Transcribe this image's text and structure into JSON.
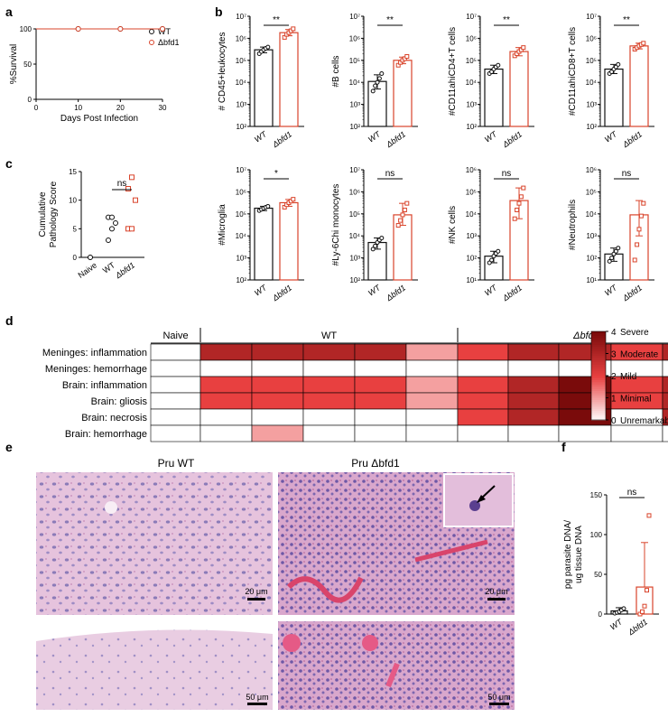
{
  "panel_labels": {
    "a": "a",
    "b": "b",
    "c": "c",
    "d": "d",
    "e": "e",
    "f": "f"
  },
  "colors": {
    "wt": "#111111",
    "mutant": "#d9442b",
    "heat_low": "#ffffff",
    "heat_high": "#7a0b0b"
  },
  "micrographs": {
    "top_left_title": "Pru WT",
    "top_right_title": "Pru Δbfd1",
    "scale_small": "20 μm",
    "scale_large": "50 μm"
  },
  "chart_data": [
    {
      "id": "a",
      "type": "line",
      "xlabel": "Days Post Infection",
      "ylabel": "%Survival",
      "xlim": [
        0,
        30
      ],
      "ylim": [
        0,
        100
      ],
      "xticks": [
        "0",
        "10",
        "20",
        "30"
      ],
      "yticks": [
        "0",
        "50",
        "100"
      ],
      "legend": "top-right",
      "series": [
        {
          "name": "WT",
          "x": [
            0,
            10,
            20,
            30
          ],
          "y": [
            100,
            100,
            100,
            100
          ]
        },
        {
          "name": "Δbfd1",
          "x": [
            0,
            10,
            20,
            30
          ],
          "y": [
            100,
            100,
            100,
            100
          ]
        }
      ]
    },
    {
      "id": "b1",
      "type": "scatter",
      "ylabel": "# CD45+leukocytes",
      "scale": "log",
      "ylim": [
        100,
        10000000
      ],
      "yticks": [
        "10²",
        "10³",
        "10⁴",
        "10⁵",
        "10⁶",
        "10⁷"
      ],
      "categories": [
        "WT",
        "Δbfd1"
      ],
      "means": [
        300000,
        1800000
      ],
      "errors": [
        [
          220000,
          400000
        ],
        [
          1300000,
          2500000
        ]
      ],
      "points": [
        [
          200000,
          250000,
          300000,
          350000,
          400000
        ],
        [
          1100000,
          1500000,
          1800000,
          2200000,
          2700000
        ]
      ],
      "significance": "**"
    },
    {
      "id": "b2",
      "type": "scatter",
      "ylabel": "#B cells",
      "scale": "log",
      "ylim": [
        100,
        10000000
      ],
      "yticks": [
        "10²",
        "10³",
        "10⁴",
        "10⁵",
        "10⁶",
        "10⁷"
      ],
      "categories": [
        "WT",
        "Δbfd1"
      ],
      "means": [
        11000,
        100000
      ],
      "errors": [
        [
          5000,
          22000
        ],
        [
          70000,
          140000
        ]
      ],
      "points": [
        [
          4000,
          7000,
          10000,
          15000,
          25000
        ],
        [
          60000,
          80000,
          100000,
          120000,
          150000
        ]
      ],
      "significance": "**"
    },
    {
      "id": "b3",
      "type": "scatter",
      "ylabel": "#CD11ahiCD4+T cells",
      "scale": "log",
      "ylim": [
        100,
        10000000
      ],
      "yticks": [
        "10²",
        "10³",
        "10⁴",
        "10⁵",
        "10⁶",
        "10⁷"
      ],
      "categories": [
        "WT",
        "Δbfd1"
      ],
      "means": [
        40000,
        250000
      ],
      "errors": [
        [
          25000,
          60000
        ],
        [
          160000,
          380000
        ]
      ],
      "points": [
        [
          25000,
          30000,
          40000,
          50000,
          60000
        ],
        [
          160000,
          200000,
          250000,
          300000,
          380000
        ]
      ],
      "significance": "**"
    },
    {
      "id": "b4",
      "type": "scatter",
      "ylabel": "#CD11ahiCD8+T cells",
      "scale": "log",
      "ylim": [
        100,
        10000000
      ],
      "yticks": [
        "10²",
        "10³",
        "10⁴",
        "10⁵",
        "10⁶",
        "10⁷"
      ],
      "categories": [
        "WT",
        "Δbfd1"
      ],
      "means": [
        40000,
        450000
      ],
      "errors": [
        [
          25000,
          65000
        ],
        [
          330000,
          600000
        ]
      ],
      "points": [
        [
          25000,
          30000,
          40000,
          50000,
          65000
        ],
        [
          320000,
          380000,
          450000,
          520000,
          600000
        ]
      ],
      "significance": "**"
    },
    {
      "id": "b5",
      "type": "scatter",
      "ylabel": "#Microglia",
      "scale": "log",
      "ylim": [
        100,
        10000000
      ],
      "yticks": [
        "10²",
        "10³",
        "10⁴",
        "10⁵",
        "10⁶",
        "10⁷"
      ],
      "categories": [
        "WT",
        "Δbfd1"
      ],
      "means": [
        180000,
        320000
      ],
      "errors": [
        [
          140000,
          220000
        ],
        [
          220000,
          450000
        ]
      ],
      "points": [
        [
          140000,
          160000,
          180000,
          200000,
          220000
        ],
        [
          200000,
          260000,
          320000,
          380000,
          460000
        ]
      ],
      "significance": "*"
    },
    {
      "id": "b6",
      "type": "scatter",
      "ylabel": "#Ly-6Chi monocytes",
      "scale": "log",
      "ylim": [
        100,
        10000000
      ],
      "yticks": [
        "10²",
        "10³",
        "10⁴",
        "10⁵",
        "10⁶",
        "10⁷"
      ],
      "categories": [
        "WT",
        "Δbfd1"
      ],
      "means": [
        5000,
        90000
      ],
      "errors": [
        [
          2500,
          8000
        ],
        [
          30000,
          300000
        ]
      ],
      "points": [
        [
          2500,
          3500,
          5000,
          6500,
          8000
        ],
        [
          30000,
          50000,
          90000,
          150000,
          300000
        ]
      ],
      "significance": "ns"
    },
    {
      "id": "b7",
      "type": "scatter",
      "ylabel": "#NK cells",
      "scale": "log",
      "ylim": [
        10,
        1000000
      ],
      "yticks": [
        "10¹",
        "10²",
        "10³",
        "10⁴",
        "10⁵",
        "10⁶"
      ],
      "categories": [
        "WT",
        "Δbfd1"
      ],
      "means": [
        120,
        40000
      ],
      "errors": [
        [
          60,
          200
        ],
        [
          6000,
          150000
        ]
      ],
      "points": [
        [
          60,
          80,
          120,
          160,
          200
        ],
        [
          6000,
          15000,
          30000,
          60000,
          150000
        ]
      ],
      "significance": "ns"
    },
    {
      "id": "b8",
      "type": "scatter",
      "ylabel": "#Neutrophils",
      "scale": "log",
      "ylim": [
        10,
        1000000
      ],
      "yticks": [
        "10¹",
        "10²",
        "10³",
        "10⁴",
        "10⁵",
        "10⁶"
      ],
      "categories": [
        "WT",
        "Δbfd1"
      ],
      "means": [
        150,
        9000
      ],
      "errors": [
        [
          70,
          280
        ],
        [
          1000,
          40000
        ]
      ],
      "points": [
        [
          70,
          100,
          150,
          200,
          280
        ],
        [
          80,
          400,
          2000,
          8000,
          30000
        ]
      ],
      "significance": "ns"
    },
    {
      "id": "c",
      "type": "scatter",
      "ylabel": "Cumulative Pathology Score",
      "ylim": [
        0,
        15
      ],
      "yticks": [
        "0",
        "5",
        "10",
        "15"
      ],
      "categories": [
        "Naive",
        "WT",
        "Δbfd1"
      ],
      "points": [
        [
          0
        ],
        [
          3,
          5,
          6,
          7,
          7
        ],
        [
          5,
          5,
          10,
          12,
          14
        ]
      ],
      "significance": "ns"
    },
    {
      "id": "d",
      "type": "heatmap",
      "groups": [
        "Naive",
        "WT",
        "Δbfd1"
      ],
      "rows": [
        "Meninges: inflammation",
        "Meninges: hemorrhage",
        "Brain: inflammation",
        "Brain: gliosis",
        "Brain: necrosis",
        "Brain: hemorrhage"
      ],
      "columns": 11,
      "values": [
        [
          0,
          3,
          3,
          3,
          3,
          1,
          2,
          3,
          3,
          2,
          3
        ],
        [
          0,
          0,
          0,
          0,
          0,
          0,
          0,
          0,
          0,
          0,
          0
        ],
        [
          0,
          2,
          2,
          2,
          2,
          1,
          2,
          3,
          4,
          2,
          3
        ],
        [
          0,
          2,
          2,
          2,
          2,
          1,
          2,
          3,
          4,
          2,
          3
        ],
        [
          0,
          0,
          0,
          0,
          0,
          0,
          2,
          3,
          4,
          0,
          3
        ],
        [
          0,
          0,
          1,
          0,
          0,
          0,
          0,
          0,
          0,
          0,
          0
        ]
      ],
      "scale_min": 0,
      "scale_max": 4,
      "legend": [
        {
          "value": "4",
          "label": "Severe"
        },
        {
          "value": "3",
          "label": "Moderate"
        },
        {
          "value": "2",
          "label": "Mild"
        },
        {
          "value": "1",
          "label": "Minimal"
        },
        {
          "value": "0",
          "label": "Unremarkable"
        }
      ]
    },
    {
      "id": "f",
      "type": "bar",
      "ylabel": "pg parasite DNA/ ug tissue DNA",
      "ylim": [
        0,
        150
      ],
      "yticks": [
        "0",
        "50",
        "100",
        "150"
      ],
      "categories": [
        "WT",
        "Δbfd1"
      ],
      "values": [
        4,
        34
      ],
      "errors": [
        [
          0,
          8
        ],
        [
          0,
          90
        ]
      ],
      "points": [
        [
          1,
          2,
          3,
          5,
          7
        ],
        [
          0,
          3,
          10,
          30,
          124
        ]
      ],
      "significance": "ns"
    }
  ]
}
